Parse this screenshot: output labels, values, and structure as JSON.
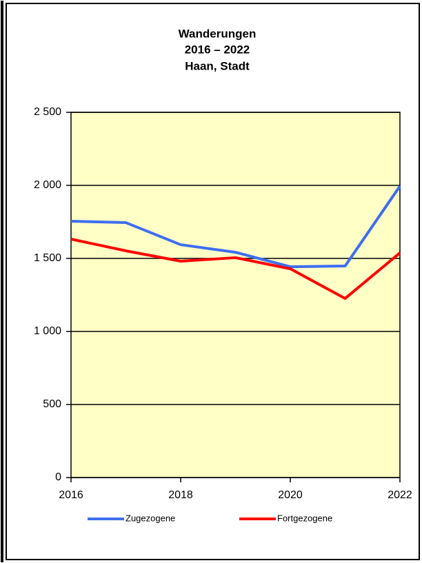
{
  "chart_data": {
    "type": "line",
    "title": [
      "Wanderungen",
      "2016 – 2022",
      "Haan, Stadt"
    ],
    "x": [
      2016,
      2017,
      2018,
      2019,
      2020,
      2021,
      2022
    ],
    "series": [
      {
        "name": "Zugezogene",
        "color": "#3f6ef0",
        "values": [
          1755,
          1745,
          1594,
          1542,
          1443,
          1448,
          1995
        ]
      },
      {
        "name": "Fortgezogene",
        "color": "#ff0000",
        "values": [
          1632,
          1552,
          1481,
          1505,
          1429,
          1226,
          1538
        ]
      }
    ],
    "xlim": [
      2016,
      2022
    ],
    "xticks": [
      2016,
      2018,
      2020,
      2022
    ],
    "ylim": [
      0,
      2500
    ],
    "yticks": [
      0,
      500,
      {
        "value": 1000,
        "label": "1 000"
      },
      {
        "value": 1500,
        "label": "1 500"
      },
      {
        "value": 2000,
        "label": "2 000"
      },
      {
        "value": 2500,
        "label": "2 500"
      }
    ],
    "grid": true,
    "legend": "bottom"
  }
}
